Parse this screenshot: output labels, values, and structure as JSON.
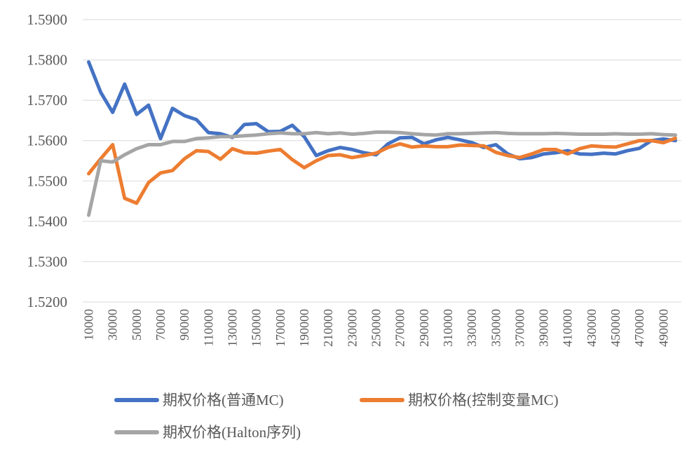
{
  "chart_data": {
    "type": "line",
    "title": "",
    "xlabel": "",
    "ylabel": "",
    "ylim": [
      1.52,
      1.59
    ],
    "y_ticks": [
      "1.5200",
      "1.5300",
      "1.5400",
      "1.5500",
      "1.5600",
      "1.5700",
      "1.5800",
      "1.5900"
    ],
    "x_tick_labels": [
      "10000",
      "30000",
      "50000",
      "70000",
      "90000",
      "110000",
      "130000",
      "150000",
      "170000",
      "190000",
      "210000",
      "230000",
      "250000",
      "270000",
      "290000",
      "310000",
      "330000",
      "350000",
      "370000",
      "390000",
      "410000",
      "430000",
      "450000",
      "470000",
      "490000"
    ],
    "x": [
      10000,
      20000,
      30000,
      40000,
      50000,
      60000,
      70000,
      80000,
      90000,
      100000,
      110000,
      120000,
      130000,
      140000,
      150000,
      160000,
      170000,
      180000,
      190000,
      200000,
      210000,
      220000,
      230000,
      240000,
      250000,
      260000,
      270000,
      280000,
      290000,
      300000,
      310000,
      320000,
      330000,
      340000,
      350000,
      360000,
      370000,
      380000,
      390000,
      400000,
      410000,
      420000,
      430000,
      440000,
      450000,
      460000,
      470000,
      480000,
      490000,
      500000
    ],
    "grid": true,
    "legend_position": "bottom",
    "series": [
      {
        "name": "期权价格(普通MC)",
        "color": "#4472c4",
        "values": [
          1.5795,
          1.572,
          1.567,
          1.574,
          1.5665,
          1.5688,
          1.5605,
          1.568,
          1.5662,
          1.5652,
          1.562,
          1.5617,
          1.5608,
          1.564,
          1.5642,
          1.5622,
          1.5623,
          1.5638,
          1.561,
          1.5563,
          1.5575,
          1.5583,
          1.5578,
          1.557,
          1.5565,
          1.5592,
          1.5607,
          1.5608,
          1.5592,
          1.5602,
          1.5608,
          1.5602,
          1.5595,
          1.5583,
          1.559,
          1.5567,
          1.5555,
          1.5558,
          1.5567,
          1.557,
          1.5575,
          1.5567,
          1.5566,
          1.5569,
          1.5567,
          1.5575,
          1.5581,
          1.56,
          1.5604,
          1.56
        ]
      },
      {
        "name": "期权价格(控制变量MC)",
        "color": "#ed7d31",
        "values": [
          1.5518,
          1.5555,
          1.559,
          1.5457,
          1.5445,
          1.5496,
          1.552,
          1.5526,
          1.5555,
          1.5575,
          1.5573,
          1.5554,
          1.558,
          1.557,
          1.5569,
          1.5574,
          1.5578,
          1.5553,
          1.5533,
          1.555,
          1.5563,
          1.5565,
          1.5558,
          1.5563,
          1.5569,
          1.5583,
          1.5592,
          1.5584,
          1.5587,
          1.5585,
          1.5585,
          1.5589,
          1.5588,
          1.5587,
          1.5571,
          1.5563,
          1.5558,
          1.5567,
          1.5578,
          1.5578,
          1.5567,
          1.558,
          1.5587,
          1.5585,
          1.5584,
          1.5592,
          1.56,
          1.56,
          1.5595,
          1.5606
        ]
      },
      {
        "name": "期权价格(Halton序列)",
        "color": "#a5a5a5",
        "values": [
          1.5415,
          1.555,
          1.5547,
          1.5565,
          1.558,
          1.559,
          1.559,
          1.5598,
          1.5598,
          1.5605,
          1.5607,
          1.561,
          1.561,
          1.5612,
          1.5614,
          1.5617,
          1.5619,
          1.5617,
          1.5617,
          1.562,
          1.5617,
          1.5619,
          1.5616,
          1.5618,
          1.5621,
          1.5621,
          1.562,
          1.5617,
          1.5615,
          1.5614,
          1.5617,
          1.5617,
          1.5618,
          1.5619,
          1.562,
          1.5618,
          1.5617,
          1.5617,
          1.5617,
          1.5618,
          1.5617,
          1.5616,
          1.5616,
          1.5616,
          1.5617,
          1.5616,
          1.5616,
          1.5617,
          1.5615,
          1.5614
        ]
      }
    ]
  }
}
